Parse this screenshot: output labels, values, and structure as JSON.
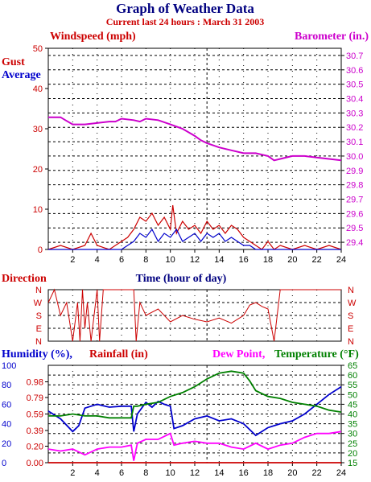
{
  "header": {
    "title": "Graph of Weather Data",
    "subtitle": "Current last 24 hours : March 31 2003"
  },
  "colors": {
    "title": "#000080",
    "wind": "#cc0000",
    "average": "#0000cc",
    "barometer": "#cc00cc",
    "humidity": "#0000cc",
    "rainfall": "#cc0000",
    "dewpoint": "#ff00ff",
    "temperature": "#008000"
  },
  "chart_data": [
    {
      "type": "line",
      "panel": "wind-barometer",
      "xlabel": "Time (hour of day)",
      "x_ticks": [
        "2",
        "4",
        "6",
        "8",
        "10",
        "12",
        "14",
        "16",
        "18",
        "20",
        "22",
        "24"
      ],
      "xlim": [
        0,
        24
      ],
      "left_axis": {
        "label": "Windspeed (mph)",
        "ylim": [
          0,
          50
        ],
        "ticks": [
          "0",
          "10",
          "20",
          "30",
          "40",
          "50"
        ]
      },
      "right_axis": {
        "label": "Barometer (in.)",
        "ylim": [
          29.35,
          30.75
        ],
        "ticks": [
          "29.4",
          "29.5",
          "29.6",
          "29.7",
          "29.8",
          "29.9",
          "30.0",
          "30.1",
          "30.2",
          "30.3",
          "30.4",
          "30.5",
          "30.6",
          "30.7"
        ]
      },
      "legend": [
        "Gust",
        "Average"
      ],
      "series": [
        {
          "name": "Barometer (in.)",
          "axis": "right",
          "x": [
            0,
            1,
            1.4,
            2,
            3,
            4,
            5,
            5.5,
            6,
            7,
            7.5,
            8,
            9,
            10,
            11,
            12,
            12.5,
            13,
            14,
            15,
            16,
            17,
            18,
            18.5,
            19,
            20,
            21,
            22,
            23,
            24
          ],
          "y": [
            30.27,
            30.27,
            30.25,
            30.22,
            30.22,
            30.23,
            30.24,
            30.24,
            30.26,
            30.25,
            30.24,
            30.26,
            30.25,
            30.22,
            30.19,
            30.14,
            30.11,
            30.09,
            30.06,
            30.04,
            30.02,
            30.02,
            30.0,
            29.97,
            29.98,
            30.0,
            30.0,
            29.99,
            29.98,
            29.97
          ]
        },
        {
          "name": "Gust",
          "axis": "left",
          "x": [
            0,
            1,
            2,
            3,
            3.5,
            4,
            5,
            6,
            6.5,
            7,
            7.5,
            8,
            8.5,
            9,
            9.5,
            10,
            10.2,
            10.5,
            11,
            11.5,
            12,
            12.5,
            13,
            13.5,
            14,
            14.5,
            15,
            15.5,
            16,
            16.5,
            17,
            17.5,
            18,
            18.5,
            19,
            20,
            21,
            22,
            23,
            24
          ],
          "y": [
            0,
            1,
            0,
            1,
            4,
            1,
            0,
            2,
            3,
            5,
            8,
            7,
            9,
            6,
            8,
            5,
            11,
            4,
            7,
            5,
            6,
            4,
            7,
            5,
            6,
            4,
            6,
            5,
            3,
            2,
            1,
            0,
            2,
            0,
            1,
            0,
            1,
            0,
            1,
            0
          ]
        },
        {
          "name": "Average",
          "axis": "left",
          "x": [
            0,
            3,
            6,
            6.5,
            7,
            7.5,
            8,
            8.5,
            9,
            9.5,
            10,
            10.5,
            11,
            11.5,
            12,
            12.5,
            13,
            13.5,
            14,
            14.5,
            15,
            15.5,
            16,
            16.5,
            17,
            24
          ],
          "y": [
            0,
            0,
            0,
            1,
            2,
            4,
            3,
            5,
            2,
            4,
            3,
            5,
            2,
            3,
            4,
            2,
            4,
            3,
            4,
            2,
            3,
            2,
            1,
            1,
            0,
            0
          ]
        }
      ]
    },
    {
      "type": "line",
      "panel": "direction",
      "ylabel": "Direction",
      "y_ticks": [
        "N",
        "W",
        "S",
        "E",
        "N"
      ],
      "xlim": [
        0,
        24
      ],
      "series": [
        {
          "name": "Direction",
          "x": [
            0,
            0.5,
            1,
            1.5,
            2,
            2.4,
            2.6,
            2.8,
            3,
            3.2,
            3.5,
            4,
            4.2,
            4.5,
            5,
            6,
            6.5,
            7,
            7.2,
            7.5,
            8,
            9,
            10,
            11,
            12,
            13,
            14,
            15,
            16,
            16.5,
            17,
            17.5,
            18,
            18.5,
            19,
            20,
            22,
            24
          ],
          "y": [
            1,
            0,
            2,
            1,
            4,
            1,
            4,
            0,
            3,
            1,
            4,
            0,
            4,
            0,
            0,
            0,
            0,
            0,
            4,
            1,
            2,
            1.5,
            2.5,
            2,
            2.3,
            2.5,
            2.2,
            2.6,
            2,
            1.2,
            1,
            1.3,
            1.5,
            4,
            0,
            0,
            0,
            0
          ]
        }
      ]
    },
    {
      "type": "line",
      "panel": "humidity-temperature",
      "left_labels": [
        "Humidity (%),",
        "Rainfall (in)"
      ],
      "right_labels": [
        "Dew Point,",
        "Temperature (°F)"
      ],
      "humidity_axis": {
        "ylim": [
          0,
          100
        ],
        "ticks": [
          "0",
          "20",
          "40",
          "60",
          "80",
          "100"
        ]
      },
      "rainfall_axis": {
        "ylim": [
          0,
          1.18
        ],
        "ticks": [
          "0.00",
          "0.20",
          "0.39",
          "0.59",
          "0.79",
          "0.98"
        ]
      },
      "temperature_axis": {
        "ylim": [
          15,
          65
        ],
        "ticks": [
          "15",
          "20",
          "25",
          "30",
          "35",
          "40",
          "45",
          "50",
          "55",
          "60",
          "65"
        ]
      },
      "series": [
        {
          "name": "Humidity",
          "axis": "humidity",
          "x": [
            0,
            1,
            2,
            2.5,
            3,
            4,
            5,
            6,
            6.8,
            7,
            7.3,
            8,
            8.5,
            9,
            9.5,
            10,
            10.3,
            11,
            12,
            13,
            14,
            15,
            16,
            17,
            18,
            19,
            20,
            21,
            22,
            23,
            24
          ],
          "y": [
            53,
            45,
            32,
            38,
            56,
            60,
            57,
            58,
            58,
            32,
            50,
            62,
            57,
            63,
            60,
            58,
            35,
            38,
            45,
            48,
            43,
            45,
            40,
            28,
            36,
            40,
            43,
            50,
            60,
            70,
            78
          ]
        },
        {
          "name": "Temperature",
          "axis": "temperature",
          "x": [
            0,
            1,
            2,
            3,
            4,
            5,
            6,
            6.8,
            7,
            7.3,
            8,
            9,
            10,
            11,
            12,
            13,
            14,
            15,
            16,
            16.5,
            17,
            18,
            19,
            20,
            21,
            22,
            23,
            24
          ],
          "y": [
            39,
            39,
            40,
            39,
            39,
            38,
            38,
            38,
            44,
            44,
            45,
            46,
            49,
            51,
            54,
            58,
            61,
            62,
            61,
            57,
            52,
            49,
            48,
            46,
            45,
            44,
            42,
            41
          ]
        },
        {
          "name": "Dew Point",
          "axis": "temperature",
          "x": [
            0,
            1,
            2,
            3,
            4,
            5,
            6,
            6.8,
            7,
            7.3,
            8,
            9,
            10,
            10.3,
            11,
            12,
            13,
            14,
            15,
            16,
            17,
            18,
            19,
            20,
            21,
            22,
            23,
            24
          ],
          "y": [
            22,
            21,
            22,
            19,
            22,
            23,
            23,
            24,
            16,
            25,
            27,
            27,
            30,
            24,
            25,
            26,
            25,
            25,
            23,
            22,
            25,
            22,
            24,
            25,
            28,
            30,
            30,
            31
          ]
        },
        {
          "name": "Rainfall",
          "axis": "rainfall",
          "x": [
            0,
            24
          ],
          "y": [
            0,
            0
          ]
        }
      ]
    }
  ]
}
